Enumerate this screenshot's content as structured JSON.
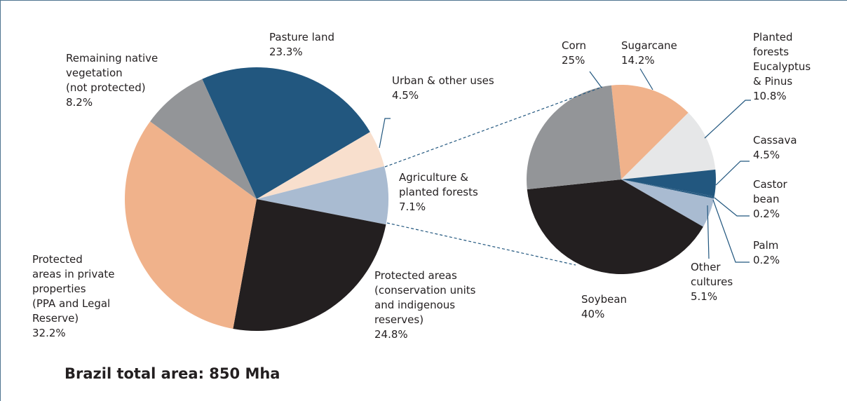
{
  "chart_data": [
    {
      "type": "pie",
      "title": "Brazil total area: 850 Mha",
      "categories": [
        "Pasture land",
        "Urban & other uses",
        "Agriculture &\nplanted forests",
        "Protected areas\n(conservation units\nand indigenous\nreserves)",
        "Protected\nareas in private\nproperties\n(PPA and Legal\nReserve)",
        "Remaining native\nvegetation\n(not protected)"
      ],
      "values": [
        23.3,
        4.5,
        7.1,
        24.8,
        32.2,
        8.2
      ],
      "value_labels": [
        "23.3%",
        "4.5%",
        "7.1%",
        "24.8%",
        "32.2%",
        "8.2%"
      ],
      "colors": [
        "#22577f",
        "#f8dfcd",
        "#a9bbd1",
        "#231f20",
        "#f0b28b",
        "#939598"
      ]
    },
    {
      "type": "pie",
      "categories": [
        "Sugarcane",
        "Planted\nforests\nEucalyptus\n& Pinus",
        "Cassava",
        "Castor\nbean",
        "Palm",
        "Other\ncultures",
        "Soybean",
        "Corn"
      ],
      "values": [
        14.2,
        10.8,
        4.5,
        0.2,
        0.2,
        5.1,
        40,
        25
      ],
      "value_labels": [
        "14.2%",
        "10.8%",
        "4.5%",
        "0.2%",
        "0.2%",
        "5.1%",
        "40%",
        "25%"
      ],
      "colors": [
        "#f0b28b",
        "#e6e7e8",
        "#22577f",
        "#22577f",
        "#22577f",
        "#a9bbd1",
        "#231f20",
        "#939598"
      ]
    }
  ]
}
